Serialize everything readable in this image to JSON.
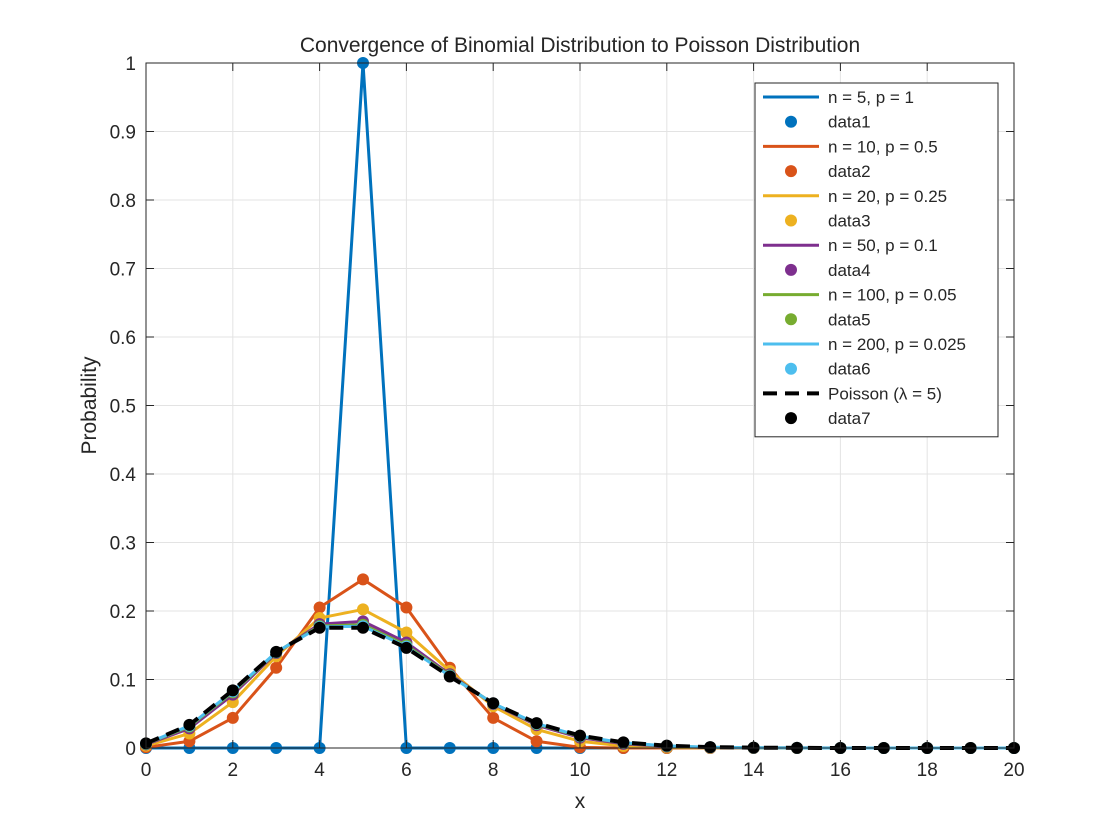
{
  "chart_data": {
    "type": "line",
    "title": "Convergence of Binomial Distribution to Poisson Distribution",
    "xlabel": "x",
    "ylabel": "Probability",
    "xlim": [
      0,
      20
    ],
    "ylim": [
      0,
      1
    ],
    "xticks": [
      0,
      2,
      4,
      6,
      8,
      10,
      12,
      14,
      16,
      18,
      20
    ],
    "yticks": [
      0,
      0.1,
      0.2,
      0.3,
      0.4,
      0.5,
      0.6,
      0.7,
      0.8,
      0.9,
      1
    ],
    "xtick_labels": [
      "0",
      "2",
      "4",
      "6",
      "8",
      "10",
      "12",
      "14",
      "16",
      "18",
      "20"
    ],
    "ytick_labels": [
      "0",
      "0.1",
      "0.2",
      "0.3",
      "0.4",
      "0.5",
      "0.6",
      "0.7",
      "0.8",
      "0.9",
      "1"
    ],
    "grid": true,
    "legend_location": "top-right",
    "x": [
      0,
      1,
      2,
      3,
      4,
      5,
      6,
      7,
      8,
      9,
      10,
      11,
      12,
      13,
      14,
      15,
      16,
      17,
      18,
      19,
      20
    ],
    "series": [
      {
        "name": "n = 5, p = 1",
        "marker_name": "data1",
        "color": "#0072BD",
        "dashed": false,
        "values": [
          0,
          0,
          0,
          0,
          0,
          1,
          0,
          0,
          0,
          0,
          0,
          0,
          0,
          0,
          0,
          0,
          0,
          0,
          0,
          0,
          0
        ]
      },
      {
        "name": "n = 10, p = 0.5",
        "marker_name": "data2",
        "color": "#D95319",
        "dashed": false,
        "values": [
          0.001,
          0.0098,
          0.0439,
          0.1172,
          0.2051,
          0.2461,
          0.2051,
          0.1172,
          0.0439,
          0.0098,
          0.001,
          0,
          0,
          0,
          0,
          0,
          0,
          0,
          0,
          0,
          0
        ]
      },
      {
        "name": "n = 20, p = 0.25",
        "marker_name": "data3",
        "color": "#EDB120",
        "dashed": false,
        "values": [
          0.0032,
          0.0211,
          0.0669,
          0.1339,
          0.1897,
          0.2023,
          0.1686,
          0.1124,
          0.0609,
          0.0271,
          0.0099,
          0.003,
          0.0008,
          0.0002,
          0,
          0,
          0,
          0,
          0,
          0,
          0
        ]
      },
      {
        "name": "n = 50, p = 0.1",
        "marker_name": "data4",
        "color": "#7E2F8E",
        "dashed": false,
        "values": [
          0.0052,
          0.0286,
          0.0779,
          0.1386,
          0.1809,
          0.1849,
          0.1541,
          0.1076,
          0.0643,
          0.0333,
          0.0152,
          0.0061,
          0.0022,
          0.0007,
          0.0002,
          0.0001,
          0,
          0,
          0,
          0,
          0
        ]
      },
      {
        "name": "n = 100, p = 0.05",
        "marker_name": "data5",
        "color": "#77AC30",
        "dashed": false,
        "values": [
          0.0059,
          0.0312,
          0.0812,
          0.1396,
          0.1781,
          0.18,
          0.15,
          0.106,
          0.0649,
          0.0349,
          0.0167,
          0.0072,
          0.0028,
          0.001,
          0.0003,
          0.0001,
          0,
          0,
          0,
          0,
          0
        ]
      },
      {
        "name": "n = 200, p = 0.025",
        "marker_name": "data6",
        "color": "#4DBEEE",
        "dashed": false,
        "values": [
          0.0063,
          0.0324,
          0.0827,
          0.1399,
          0.1768,
          0.1777,
          0.148,
          0.1052,
          0.0651,
          0.0356,
          0.0174,
          0.0077,
          0.0031,
          0.0011,
          0.0004,
          0.0001,
          0,
          0,
          0,
          0,
          0
        ]
      },
      {
        "name": "Poisson (λ = 5)",
        "marker_name": "data7",
        "color": "#000000",
        "dashed": true,
        "values": [
          0.0067,
          0.0337,
          0.0842,
          0.1404,
          0.1755,
          0.1755,
          0.1462,
          0.1044,
          0.0653,
          0.0363,
          0.0181,
          0.0082,
          0.0034,
          0.0013,
          0.0005,
          0.0002,
          0,
          0,
          0,
          0,
          0
        ]
      }
    ]
  }
}
